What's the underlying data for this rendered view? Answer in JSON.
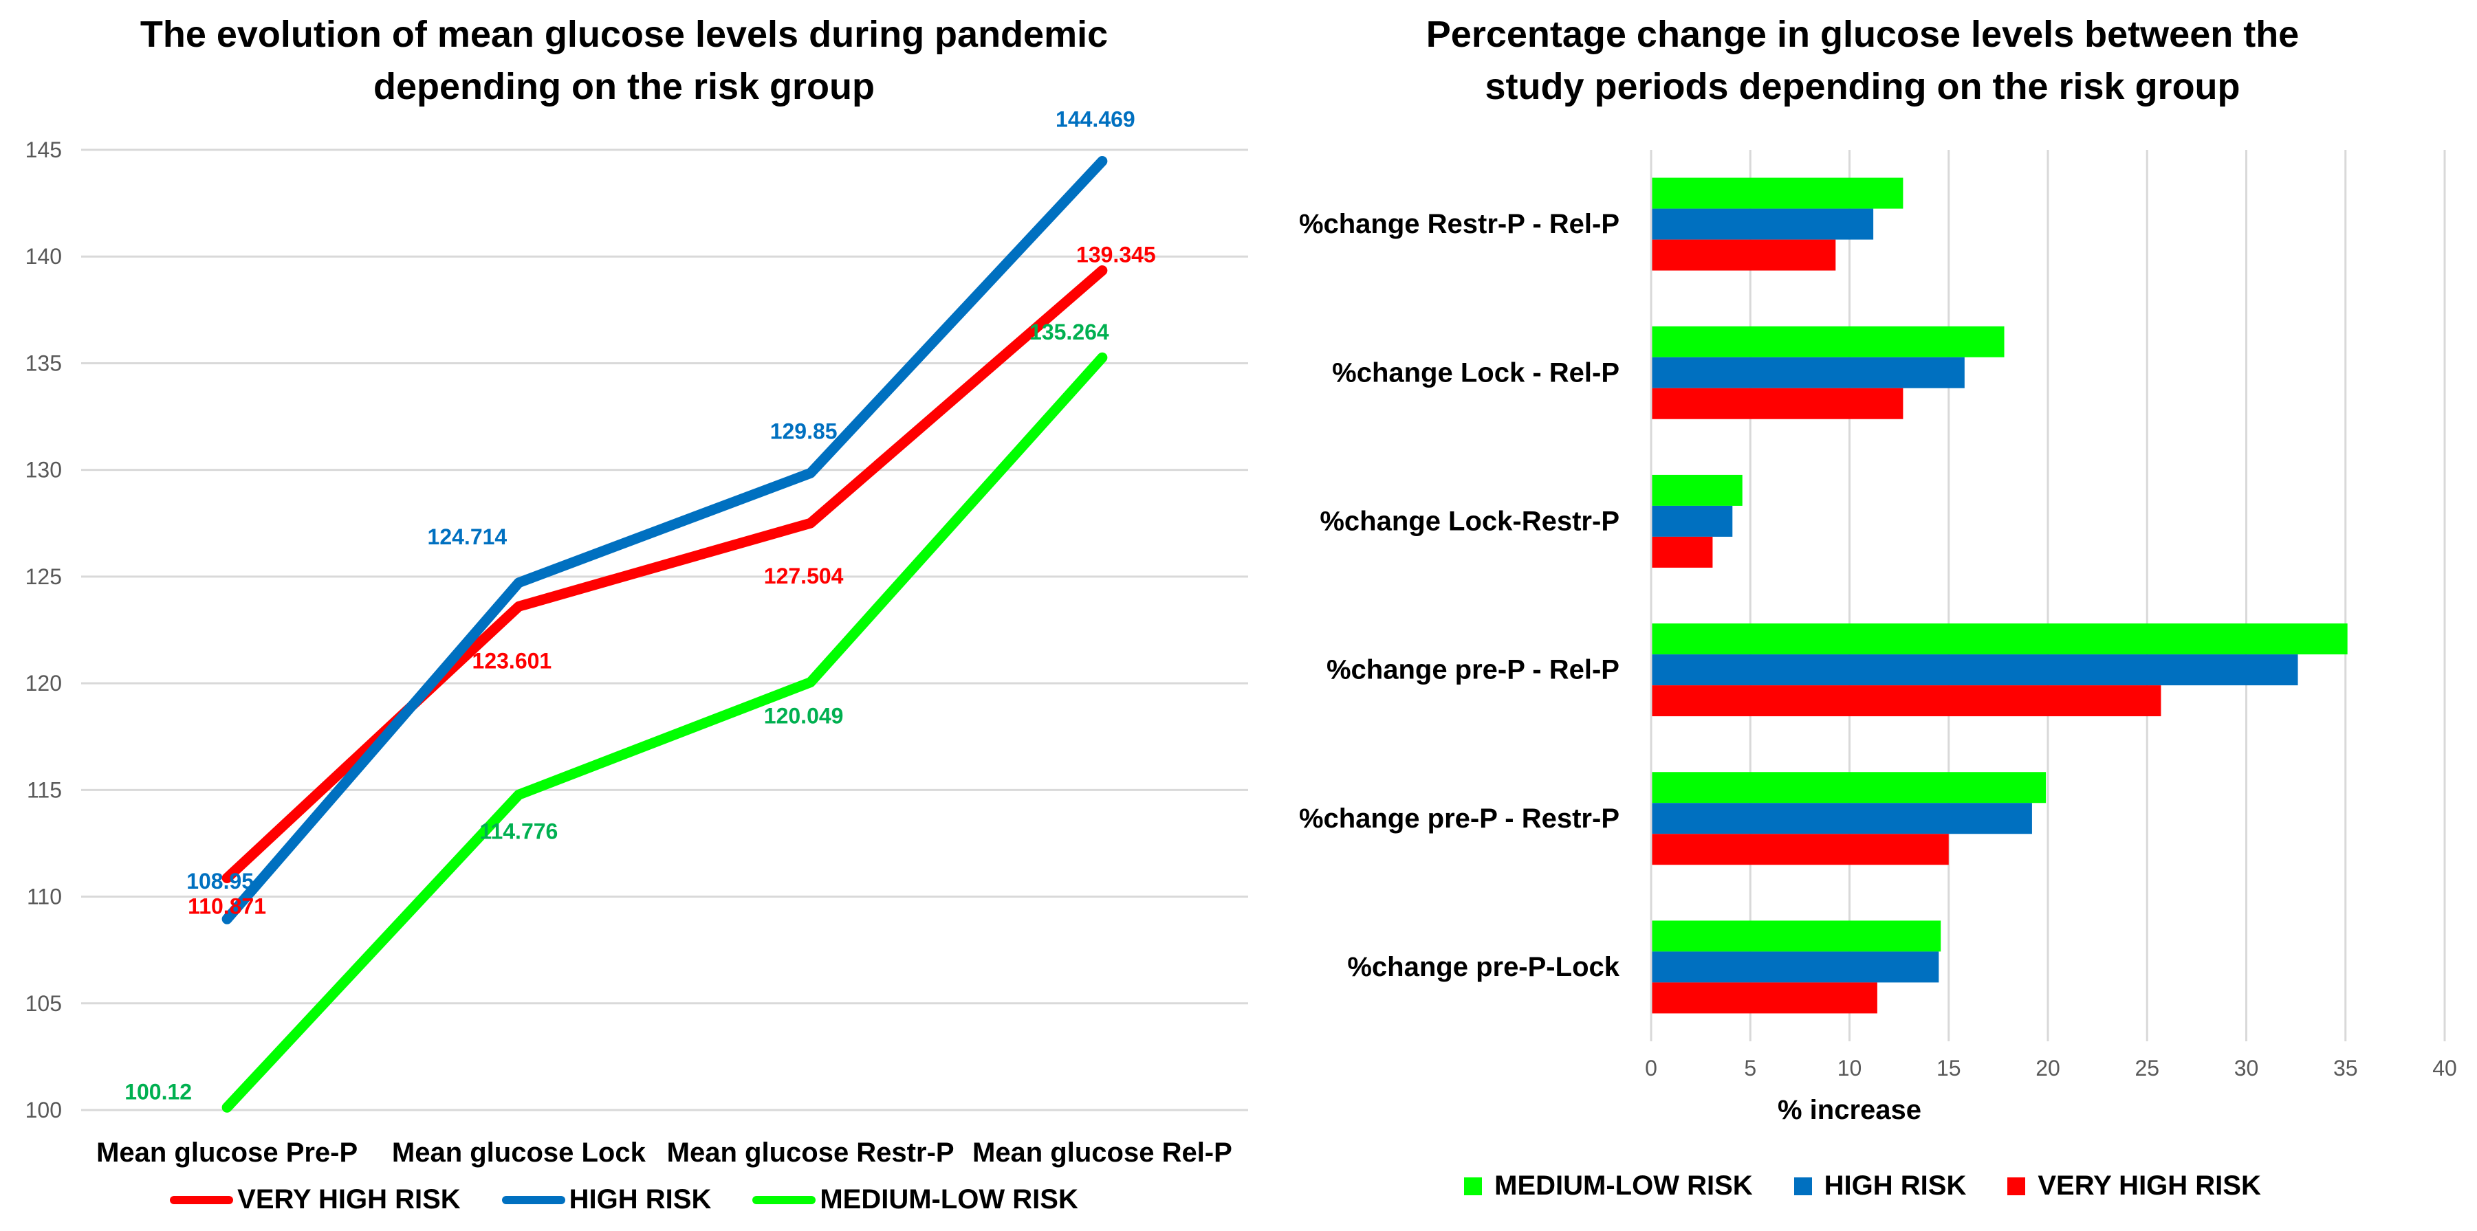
{
  "colors": {
    "very_high": "#FF0000",
    "high": "#0070C0",
    "medium_low": "#00FF00",
    "very_high_label": "#FF0000",
    "high_label": "#0070C0",
    "medium_low_label": "#00B050",
    "grid": "#D9D9D9",
    "axis_text": "#595959"
  },
  "chart_data": [
    {
      "type": "line",
      "title_line1": "The evolution of mean glucose levels during pandemic",
      "title_line2": "depending on the risk group",
      "categories": [
        "Mean glucose Pre-P",
        "Mean glucose Lock",
        "Mean glucose Restr-P",
        "Mean glucose Rel-P"
      ],
      "ylim": [
        100,
        145
      ],
      "yticks": [
        "100",
        "105",
        "110",
        "115",
        "120",
        "125",
        "130",
        "135",
        "140",
        "145"
      ],
      "series": [
        {
          "name": "VERY HIGH RISK",
          "key": "very_high",
          "values": [
            110.871,
            123.601,
            127.504,
            139.345
          ],
          "labels": [
            "110.871",
            "123.601",
            "127.504",
            "139.345"
          ]
        },
        {
          "name": "HIGH RISK",
          "key": "high",
          "values": [
            108.95,
            124.714,
            129.85,
            144.469
          ],
          "labels": [
            "108.95",
            "124.714",
            "129.85",
            "144.469"
          ]
        },
        {
          "name": "MEDIUM-LOW RISK",
          "key": "medium_low",
          "values": [
            100.12,
            114.776,
            120.049,
            135.264
          ],
          "labels": [
            "100.12",
            "114.776",
            "120.049",
            "135.264"
          ]
        }
      ],
      "legend": [
        "VERY HIGH RISK",
        "HIGH RISK",
        "MEDIUM-LOW RISK"
      ]
    },
    {
      "type": "bar",
      "orientation": "horizontal",
      "title_line1": "Percentage change in glucose levels between the",
      "title_line2": "study periods depending on the risk group",
      "categories": [
        "%change Restr-P - Rel-P",
        "%change Lock - Rel-P",
        "%change Lock-Restr-P",
        "%change pre-P - Rel-P",
        "%change pre-P - Restr-P",
        "%change pre-P-Lock"
      ],
      "xlabel": "% increase",
      "xlim": [
        0,
        40
      ],
      "xticks": [
        "0",
        "5",
        "10",
        "15",
        "20",
        "25",
        "30",
        "35",
        "40"
      ],
      "series": [
        {
          "name": "MEDIUM-LOW RISK",
          "key": "medium_low",
          "values": [
            12.7,
            17.8,
            4.6,
            35.1,
            19.9,
            14.6
          ]
        },
        {
          "name": "HIGH RISK",
          "key": "high",
          "values": [
            11.2,
            15.8,
            4.1,
            32.6,
            19.2,
            14.5
          ]
        },
        {
          "name": "VERY HIGH RISK",
          "key": "very_high",
          "values": [
            9.3,
            12.7,
            3.1,
            25.7,
            15.0,
            11.4
          ]
        }
      ],
      "legend": [
        "MEDIUM-LOW RISK",
        "HIGH RISK",
        "VERY HIGH RISK"
      ]
    }
  ]
}
